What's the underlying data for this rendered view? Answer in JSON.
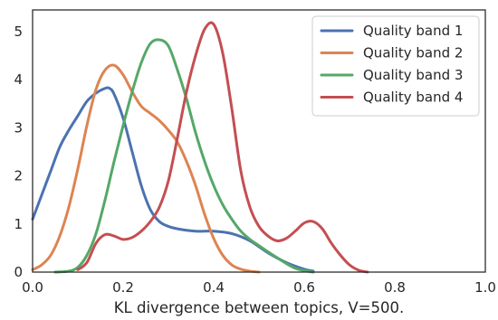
{
  "chart_data": {
    "type": "line",
    "title": "",
    "xlabel": "KL divergence between topics, V=500.",
    "ylabel": "",
    "xlim": [
      0.0,
      1.0
    ],
    "ylim": [
      0,
      5.45
    ],
    "xticks": [
      0.0,
      0.2,
      0.4,
      0.6,
      0.8,
      1.0
    ],
    "xtick_labels": [
      "0.0",
      "0.2",
      "0.4",
      "0.6",
      "0.8",
      "1.0"
    ],
    "yticks": [
      0,
      1,
      2,
      3,
      4,
      5
    ],
    "ytick_labels": [
      "0",
      "1",
      "2",
      "3",
      "4",
      "5"
    ],
    "grid": false,
    "legend": "top-right",
    "series": [
      {
        "name": "Quality band 1",
        "color": "#4c72b0",
        "x": [
          0.0,
          0.02,
          0.04,
          0.06,
          0.08,
          0.1,
          0.12,
          0.14,
          0.16,
          0.17,
          0.18,
          0.2,
          0.22,
          0.24,
          0.26,
          0.28,
          0.3,
          0.32,
          0.36,
          0.4,
          0.44,
          0.48,
          0.52,
          0.56,
          0.6,
          0.62
        ],
        "y": [
          1.1,
          1.6,
          2.1,
          2.6,
          2.95,
          3.25,
          3.55,
          3.72,
          3.82,
          3.82,
          3.7,
          3.2,
          2.5,
          1.8,
          1.3,
          1.05,
          0.95,
          0.9,
          0.85,
          0.85,
          0.8,
          0.65,
          0.4,
          0.2,
          0.06,
          0.02
        ]
      },
      {
        "name": "Quality band 2",
        "color": "#dd8452",
        "x": [
          0.0,
          0.02,
          0.04,
          0.06,
          0.08,
          0.1,
          0.12,
          0.14,
          0.16,
          0.18,
          0.2,
          0.22,
          0.24,
          0.26,
          0.28,
          0.3,
          0.32,
          0.34,
          0.36,
          0.38,
          0.4,
          0.42,
          0.44,
          0.46,
          0.48,
          0.5
        ],
        "y": [
          0.05,
          0.15,
          0.35,
          0.75,
          1.35,
          2.15,
          3.05,
          3.8,
          4.2,
          4.3,
          4.1,
          3.75,
          3.45,
          3.3,
          3.15,
          2.95,
          2.7,
          2.3,
          1.8,
          1.2,
          0.7,
          0.35,
          0.15,
          0.06,
          0.02,
          0.0
        ]
      },
      {
        "name": "Quality band 3",
        "color": "#55a868",
        "x": [
          0.05,
          0.08,
          0.1,
          0.12,
          0.14,
          0.16,
          0.18,
          0.2,
          0.22,
          0.24,
          0.26,
          0.28,
          0.3,
          0.32,
          0.34,
          0.36,
          0.38,
          0.4,
          0.42,
          0.44,
          0.46,
          0.48,
          0.5,
          0.52,
          0.54,
          0.56,
          0.58,
          0.6,
          0.62
        ],
        "y": [
          0.0,
          0.02,
          0.1,
          0.35,
          0.8,
          1.5,
          2.3,
          3.05,
          3.75,
          4.35,
          4.75,
          4.83,
          4.7,
          4.2,
          3.6,
          2.9,
          2.3,
          1.8,
          1.4,
          1.1,
          0.85,
          0.68,
          0.55,
          0.42,
          0.3,
          0.18,
          0.08,
          0.03,
          0.0
        ]
      },
      {
        "name": "Quality band 4",
        "color": "#c44e52",
        "x": [
          0.1,
          0.12,
          0.14,
          0.16,
          0.18,
          0.2,
          0.22,
          0.24,
          0.26,
          0.28,
          0.3,
          0.32,
          0.34,
          0.36,
          0.38,
          0.4,
          0.42,
          0.44,
          0.46,
          0.48,
          0.5,
          0.52,
          0.54,
          0.56,
          0.58,
          0.6,
          0.62,
          0.64,
          0.66,
          0.68,
          0.7,
          0.72,
          0.74
        ],
        "y": [
          0.05,
          0.2,
          0.6,
          0.78,
          0.75,
          0.68,
          0.72,
          0.85,
          1.05,
          1.35,
          1.9,
          2.8,
          3.75,
          4.5,
          5.05,
          5.15,
          4.55,
          3.4,
          2.1,
          1.35,
          0.95,
          0.75,
          0.65,
          0.7,
          0.85,
          1.02,
          1.05,
          0.9,
          0.6,
          0.35,
          0.15,
          0.04,
          0.0
        ]
      }
    ]
  }
}
